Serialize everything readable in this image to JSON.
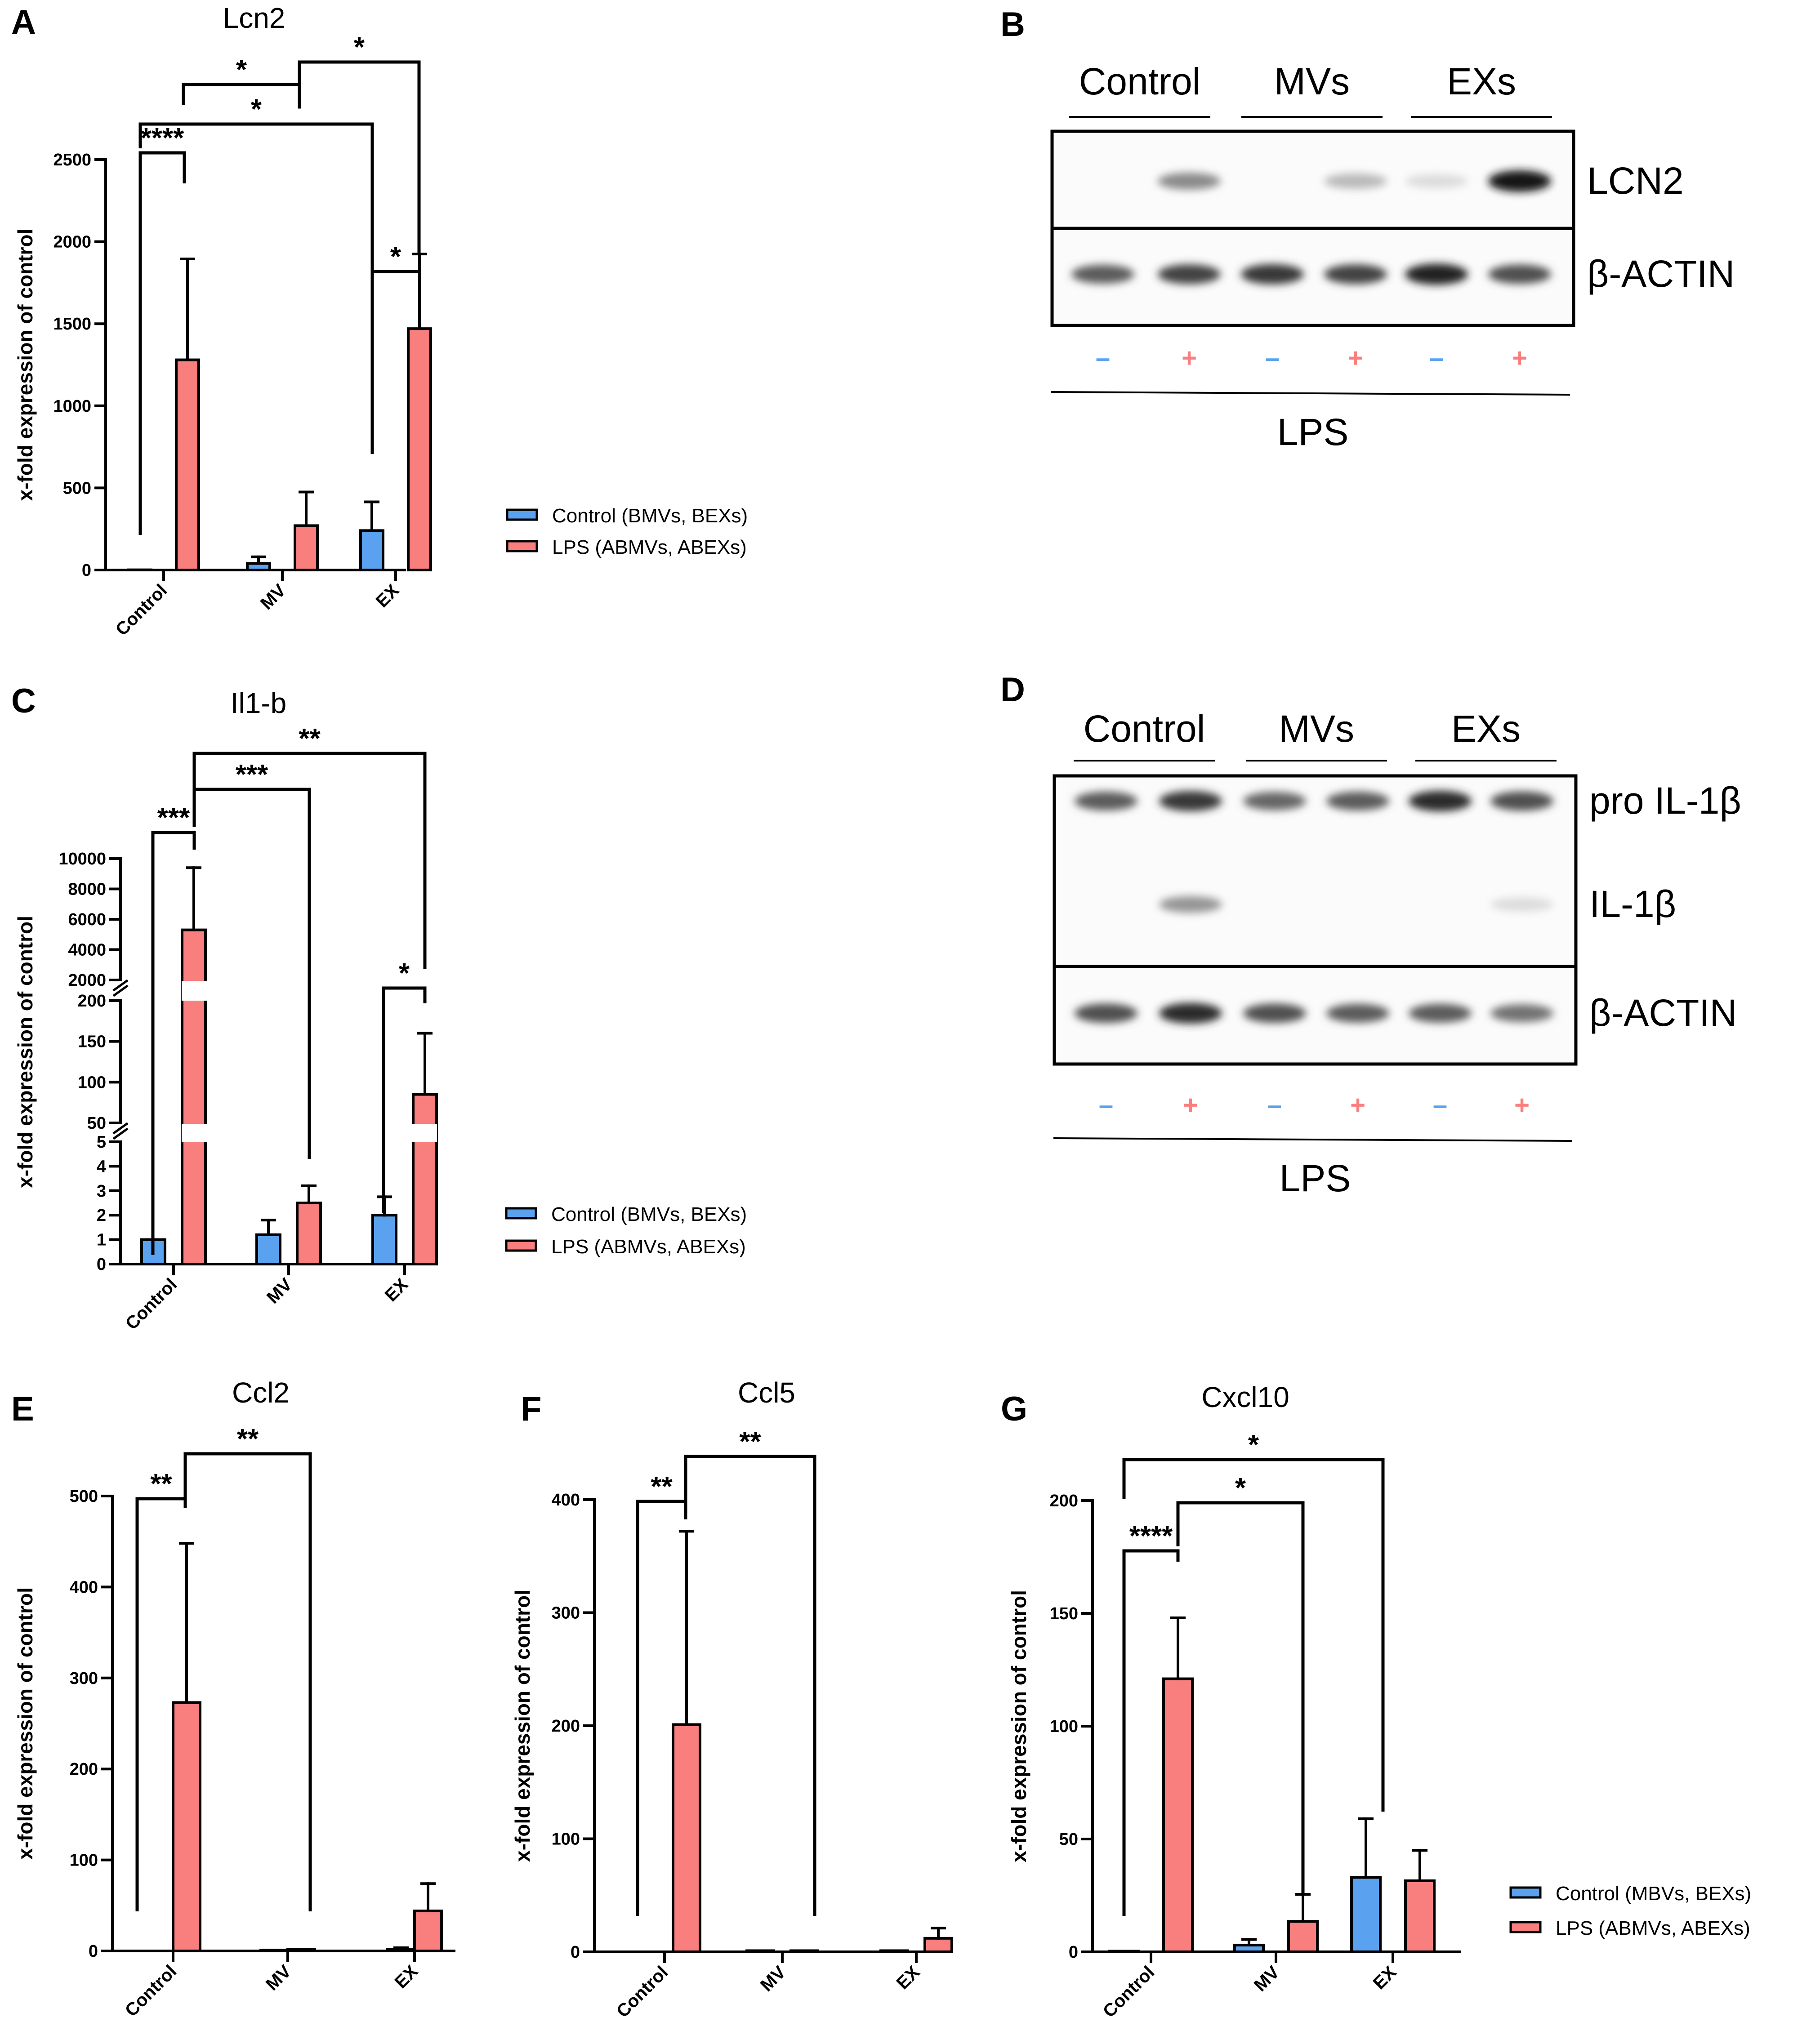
{
  "colors": {
    "control": "#5aa2ef",
    "lps": "#f97f7f",
    "axis": "#000000",
    "sign_minus": "#5aa2ef",
    "sign_plus": "#f97f7f"
  },
  "legend_labels": {
    "abc": [
      "Control (BMVs, BEXs)",
      "LPS (ABMVs, ABEXs)"
    ],
    "g": [
      "Control (MBVs, BEXs)",
      "LPS (ABMVs, ABEXs)"
    ]
  },
  "chart_data": [
    {
      "panel": "A",
      "type": "bar",
      "title": "Lcn2",
      "ylabel": "x-fold expression of control",
      "categories": [
        "Control",
        "MV",
        "EX"
      ],
      "ylim": [
        0,
        2500
      ],
      "yticks": [
        0,
        500,
        1000,
        1500,
        2000,
        2500
      ],
      "series": [
        {
          "name": "Control (BMVs, BEXs)",
          "values": [
            1,
            40,
            240
          ],
          "errors": [
            0,
            40,
            175
          ]
        },
        {
          "name": "LPS (ABMVs, ABEXs)",
          "values": [
            1280,
            270,
            1470
          ],
          "errors": [
            615,
            205,
            455
          ]
        }
      ],
      "annotations": [
        {
          "text": "****",
          "from": "Control-Control",
          "to": "Control-LPS"
        },
        {
          "text": "*",
          "from": "Control-LPS",
          "to": "EX-Control"
        },
        {
          "text": "*",
          "from": "Control-Control/LPS",
          "to": "MV-LPS"
        },
        {
          "text": "*",
          "from": "MV",
          "to": "EX-LPS"
        },
        {
          "text": "*",
          "from": "EX-Control",
          "to": "EX-LPS"
        }
      ]
    },
    {
      "panel": "C",
      "type": "bar",
      "title": "Il1-b",
      "ylabel": "x-fold expression of control",
      "categories": [
        "Control",
        "MV",
        "EX"
      ],
      "axis_segments": [
        [
          0,
          5
        ],
        [
          50,
          200
        ],
        [
          2000,
          10000
        ]
      ],
      "yticks": [
        0,
        1,
        2,
        3,
        4,
        5,
        50,
        100,
        150,
        200,
        2000,
        4000,
        6000,
        8000,
        10000
      ],
      "series": [
        {
          "name": "Control (BMVs, BEXs)",
          "values": [
            1,
            1.2,
            2
          ],
          "errors": [
            0,
            0.6,
            0.75
          ]
        },
        {
          "name": "LPS (ABMVs, ABEXs)",
          "values": [
            5300,
            2.5,
            85
          ],
          "errors": [
            4100,
            0.7,
            75
          ]
        }
      ],
      "annotations": [
        {
          "text": "***",
          "from": "Control-Control",
          "to": "Control-LPS"
        },
        {
          "text": "***",
          "from": "Control-LPS",
          "to": "MV-LPS"
        },
        {
          "text": "**",
          "from": "Control-LPS",
          "to": "EX-LPS"
        },
        {
          "text": "*",
          "from": "EX-Control",
          "to": "EX-LPS"
        }
      ]
    },
    {
      "panel": "E",
      "type": "bar",
      "title": "Ccl2",
      "ylabel": "x-fold expression of control",
      "categories": [
        "Control",
        "MV",
        "EX"
      ],
      "ylim": [
        0,
        500
      ],
      "yticks": [
        0,
        100,
        200,
        300,
        400,
        500
      ],
      "series": [
        {
          "name": "Control",
          "values": [
            0,
            1,
            2
          ],
          "errors": [
            0,
            0,
            1.5
          ]
        },
        {
          "name": "LPS",
          "values": [
            273,
            2,
            44
          ],
          "errors": [
            175,
            0,
            30
          ]
        }
      ],
      "annotations": [
        {
          "text": "**",
          "from": "Control-Control",
          "to": "Control-LPS"
        },
        {
          "text": "**",
          "from": "Control-LPS",
          "to": "MV-LPS"
        }
      ]
    },
    {
      "panel": "F",
      "type": "bar",
      "title": "Ccl5",
      "ylabel": "x-fold expression of control",
      "categories": [
        "Control",
        "MV",
        "EX"
      ],
      "ylim": [
        0,
        400
      ],
      "yticks": [
        0,
        100,
        200,
        300,
        400
      ],
      "series": [
        {
          "name": "Control",
          "values": [
            0,
            1,
            1
          ],
          "errors": [
            0,
            0,
            0
          ]
        },
        {
          "name": "LPS",
          "values": [
            201,
            1,
            12
          ],
          "errors": [
            171,
            0,
            9
          ]
        }
      ],
      "annotations": [
        {
          "text": "**",
          "from": "Control-Control",
          "to": "Control-LPS"
        },
        {
          "text": "**",
          "from": "Control-LPS",
          "to": "MV-LPS"
        }
      ]
    },
    {
      "panel": "G",
      "type": "bar",
      "title": "Cxcl10",
      "ylabel": "x-fold expression of control",
      "categories": [
        "Control",
        "MV",
        "EX"
      ],
      "ylim": [
        0,
        200
      ],
      "yticks": [
        0,
        50,
        100,
        150,
        200
      ],
      "series": [
        {
          "name": "Control (MBVs, BEXs)",
          "values": [
            0.3,
            3,
            33
          ],
          "errors": [
            0,
            2.5,
            26
          ]
        },
        {
          "name": "LPS (ABMVs, ABEXs)",
          "values": [
            121,
            13.5,
            31.5
          ],
          "errors": [
            27,
            12,
            13.5
          ]
        }
      ],
      "annotations": [
        {
          "text": "****",
          "from": "Control-Control",
          "to": "Control-LPS"
        },
        {
          "text": "*",
          "from": "Control-LPS",
          "to": "MV-LPS"
        },
        {
          "text": "*",
          "from": "Control-Control",
          "to": "EX-Control"
        }
      ]
    }
  ],
  "blots": [
    {
      "panel": "B",
      "groups": [
        "Control",
        "MVs",
        "EXs"
      ],
      "rows": [
        {
          "label": "LCN2",
          "intensities": [
            0,
            0.5,
            0,
            0.3,
            0.15,
            1.0
          ]
        },
        {
          "label": "β-ACTIN",
          "intensities": [
            0.7,
            0.8,
            0.85,
            0.8,
            0.95,
            0.75
          ]
        }
      ],
      "signs": [
        "–",
        "+",
        "–",
        "+",
        "–",
        "+"
      ],
      "treatment": "LPS"
    },
    {
      "panel": "D",
      "groups": [
        "Control",
        "MVs",
        "EXs"
      ],
      "rows": [
        {
          "label": "pro IL-1β",
          "intensities": [
            0.7,
            0.85,
            0.65,
            0.7,
            0.9,
            0.75
          ]
        },
        {
          "label": "IL-1β",
          "intensities": [
            0,
            0.45,
            0,
            0,
            0,
            0.15
          ]
        },
        {
          "label": "β-ACTIN",
          "intensities": [
            0.75,
            0.9,
            0.75,
            0.7,
            0.7,
            0.6
          ]
        }
      ],
      "signs": [
        "–",
        "+",
        "–",
        "+",
        "–",
        "+"
      ],
      "treatment": "LPS"
    }
  ]
}
